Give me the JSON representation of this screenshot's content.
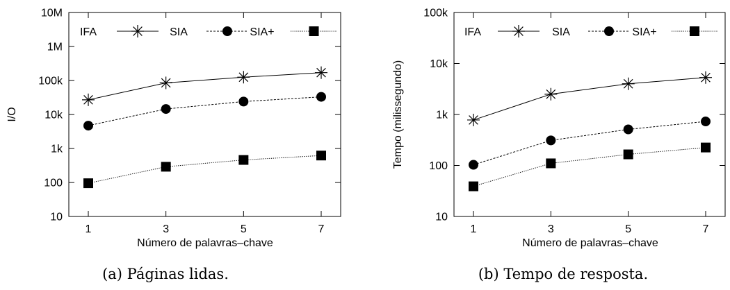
{
  "chart_data": [
    {
      "type": "line",
      "caption": "(a) Páginas lidas.",
      "xlabel": "Número de palavras–chave",
      "ylabel": "I/O",
      "x": [
        1,
        3,
        5,
        7
      ],
      "xticks": [
        "1",
        "3",
        "5",
        "7"
      ],
      "yscale": "log",
      "ylim": [
        10,
        10000000
      ],
      "yticks": [
        {
          "v": 10,
          "label": "10"
        },
        {
          "v": 100,
          "label": "100"
        },
        {
          "v": 1000,
          "label": "1k"
        },
        {
          "v": 10000,
          "label": "10k"
        },
        {
          "v": 100000,
          "label": "100k"
        },
        {
          "v": 1000000,
          "label": "1M"
        },
        {
          "v": 10000000,
          "label": "10M"
        }
      ],
      "grid": false,
      "legend_position": "top",
      "series": [
        {
          "name": "IFA",
          "marker": "asterisk",
          "line": "solid",
          "values": [
            27000,
            85000,
            125000,
            170000
          ]
        },
        {
          "name": "SIA",
          "marker": "circle",
          "line": "dashed",
          "values": [
            4700,
            14500,
            24000,
            33000
          ]
        },
        {
          "name": "SIA+",
          "marker": "square",
          "line": "dotted",
          "values": [
            95,
            290,
            460,
            620
          ]
        }
      ]
    },
    {
      "type": "line",
      "caption": "(b) Tempo de resposta.",
      "xlabel": "Número de palavras–chave",
      "ylabel": "Tempo (milissegundo)",
      "x": [
        1,
        3,
        5,
        7
      ],
      "xticks": [
        "1",
        "3",
        "5",
        "7"
      ],
      "yscale": "log",
      "ylim": [
        10,
        100000
      ],
      "yticks": [
        {
          "v": 10,
          "label": "10"
        },
        {
          "v": 100,
          "label": "100"
        },
        {
          "v": 1000,
          "label": "1k"
        },
        {
          "v": 10000,
          "label": "10k"
        },
        {
          "v": 100000,
          "label": "100k"
        }
      ],
      "grid": false,
      "legend_position": "top",
      "series": [
        {
          "name": "IFA",
          "marker": "asterisk",
          "line": "solid",
          "values": [
            780,
            2500,
            4000,
            5300
          ]
        },
        {
          "name": "SIA",
          "marker": "circle",
          "line": "dashed",
          "values": [
            103,
            310,
            510,
            730
          ]
        },
        {
          "name": "SIA+",
          "marker": "square",
          "line": "dotted",
          "values": [
            39,
            110,
            165,
            225
          ]
        }
      ]
    }
  ]
}
